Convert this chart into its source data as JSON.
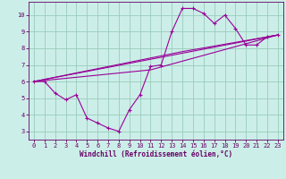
{
  "xlabel": "Windchill (Refroidissement éolien,°C)",
  "bg_color": "#cceee8",
  "grid_color": "#99ccbb",
  "line_color": "#990099",
  "spine_color": "#660066",
  "xlim": [
    -0.5,
    23.5
  ],
  "ylim": [
    2.5,
    10.8
  ],
  "xticks": [
    0,
    1,
    2,
    3,
    4,
    5,
    6,
    7,
    8,
    9,
    10,
    11,
    12,
    13,
    14,
    15,
    16,
    17,
    18,
    19,
    20,
    21,
    22,
    23
  ],
  "yticks": [
    3,
    4,
    5,
    6,
    7,
    8,
    9,
    10
  ],
  "line1_x": [
    0,
    1,
    2,
    3,
    4,
    5,
    6,
    7,
    8,
    9,
    10,
    11,
    12,
    13,
    14,
    15,
    16,
    17,
    18,
    19,
    20,
    21,
    22,
    23
  ],
  "line1_y": [
    6.0,
    6.0,
    5.3,
    4.9,
    5.2,
    3.8,
    3.5,
    3.2,
    3.0,
    4.3,
    5.2,
    6.9,
    7.0,
    9.0,
    10.4,
    10.4,
    10.1,
    9.5,
    10.0,
    9.2,
    8.2,
    8.2,
    8.7,
    8.8
  ],
  "line2_x": [
    0,
    23
  ],
  "line2_y": [
    6.0,
    8.8
  ],
  "line3_x": [
    0,
    11,
    23
  ],
  "line3_y": [
    6.0,
    6.7,
    8.8
  ],
  "line4_x": [
    0,
    14,
    23
  ],
  "line4_y": [
    6.0,
    7.8,
    8.8
  ],
  "xlabel_fontsize": 5.5,
  "tick_fontsize": 5,
  "lw": 0.8,
  "marker_size": 3
}
